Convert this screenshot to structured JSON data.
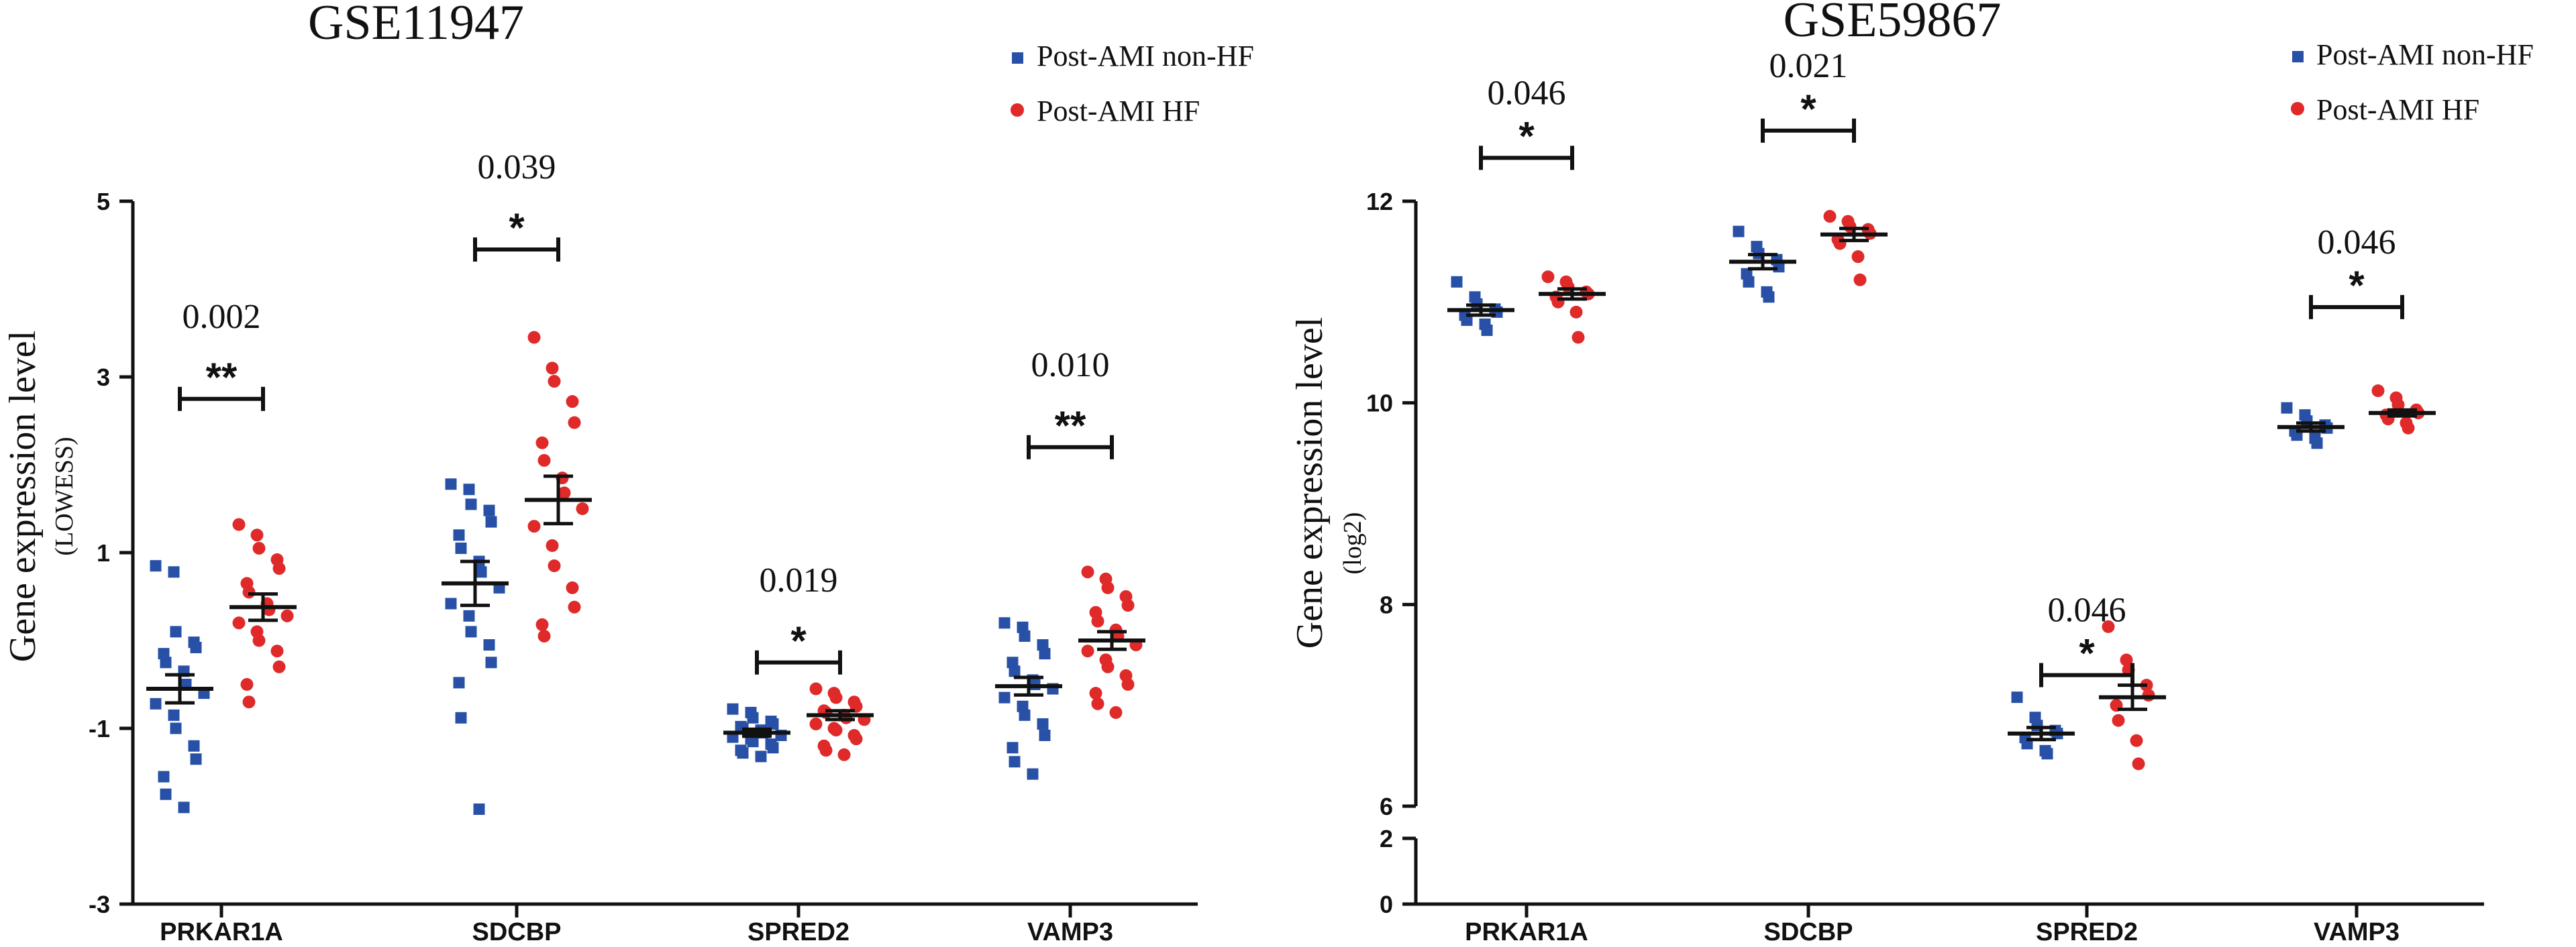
{
  "colors": {
    "non_hf": "#2750a6",
    "hf": "#e02a2a",
    "axis": "#111111"
  },
  "chart_data": [
    {
      "type": "scatter",
      "title": "GSE11947",
      "ylabel": "Gene expression level",
      "ylabel_sub": "(LOWESS)",
      "ylim": [
        -3,
        5
      ],
      "yticks": [
        -3,
        -1,
        1,
        3,
        5
      ],
      "ytick_labels": [
        "-3",
        "-1",
        "1",
        "3",
        "5"
      ],
      "categories": [
        "PRKAR1A",
        "SDCBP",
        "SPRED2",
        "VAMP3"
      ],
      "legend": [
        "Post-AMI non-HF",
        "Post-AMI HF"
      ],
      "series": [
        {
          "name": "Post-AMI non-HF",
          "marker": "square",
          "points": [
            [
              0.85,
              0.78,
              0.1,
              -0.02,
              -0.08,
              -0.15,
              -0.25,
              -0.35,
              -0.5,
              -0.6,
              -0.72,
              -0.85,
              -1.0,
              -1.2,
              -1.35,
              -1.55,
              -1.75,
              -1.9
            ],
            [
              1.78,
              1.72,
              1.55,
              1.48,
              1.35,
              1.2,
              1.05,
              0.9,
              0.78,
              0.6,
              0.42,
              0.28,
              0.1,
              -0.05,
              -0.25,
              -0.48,
              -0.88,
              -1.92
            ],
            [
              -0.78,
              -0.82,
              -0.88,
              -0.92,
              -0.95,
              -0.98,
              -1.0,
              -1.02,
              -1.05,
              -1.08,
              -1.1,
              -1.12,
              -1.15,
              -1.18,
              -1.22,
              -1.25,
              -1.28,
              -1.32
            ],
            [
              0.2,
              0.15,
              0.05,
              -0.05,
              -0.15,
              -0.25,
              -0.35,
              -0.45,
              -0.5,
              -0.55,
              -0.65,
              -0.75,
              -0.85,
              -0.95,
              -1.08,
              -1.22,
              -1.38,
              -1.52
            ]
          ],
          "mean": [
            -0.55,
            0.65,
            -1.05,
            -0.52
          ],
          "sem": [
            0.16,
            0.25,
            0.04,
            0.1
          ]
        },
        {
          "name": "Post-AMI HF",
          "marker": "circle",
          "points": [
            [
              1.32,
              1.2,
              1.05,
              0.92,
              0.82,
              0.65,
              0.55,
              0.42,
              0.35,
              0.28,
              0.2,
              0.1,
              0.0,
              -0.12,
              -0.3,
              -0.5,
              -0.7
            ],
            [
              3.45,
              3.1,
              2.95,
              2.72,
              2.48,
              2.25,
              2.05,
              1.85,
              1.68,
              1.5,
              1.3,
              1.08,
              0.85,
              0.6,
              0.38,
              0.18,
              0.05
            ],
            [
              -0.55,
              -0.6,
              -0.65,
              -0.7,
              -0.75,
              -0.8,
              -0.82,
              -0.85,
              -0.88,
              -0.9,
              -0.95,
              -1.0,
              -1.02,
              -1.08,
              -1.12,
              -1.2,
              -1.25,
              -1.3
            ],
            [
              0.78,
              0.7,
              0.6,
              0.5,
              0.4,
              0.32,
              0.22,
              0.12,
              0.05,
              -0.05,
              -0.12,
              -0.22,
              -0.3,
              -0.4,
              -0.5,
              -0.6,
              -0.72,
              -0.82
            ]
          ],
          "mean": [
            0.38,
            1.6,
            -0.85,
            0.0
          ],
          "sem": [
            0.15,
            0.27,
            0.05,
            0.1
          ]
        }
      ],
      "significance": [
        {
          "category": "PRKAR1A",
          "p": "0.002",
          "stars": "**",
          "bar_y": 2.75
        },
        {
          "category": "SDCBP",
          "p": "0.039",
          "stars": "*",
          "bar_y": 4.45
        },
        {
          "category": "SPRED2",
          "p": "0.019",
          "stars": "*",
          "bar_y": -0.25
        },
        {
          "category": "VAMP3",
          "p": "0.010",
          "stars": "**",
          "bar_y": 2.2
        }
      ]
    },
    {
      "type": "scatter",
      "title": "GSE59867",
      "ylabel": "Gene expression level",
      "ylabel_sub": "(log2)",
      "ylim": [
        0,
        12
      ],
      "axis_break": [
        2,
        6
      ],
      "yticks": [
        0,
        2,
        6,
        8,
        10,
        12
      ],
      "ytick_labels": [
        "0",
        "2",
        "6",
        "8",
        "10",
        "12"
      ],
      "categories": [
        "PRKAR1A",
        "SDCBP",
        "SPRED2",
        "VAMP3"
      ],
      "legend": [
        "Post-AMI non-HF",
        "Post-AMI HF"
      ],
      "series": [
        {
          "name": "Post-AMI non-HF",
          "marker": "square",
          "points": [
            [
              11.2,
              11.05,
              10.98,
              10.93,
              10.9,
              10.87,
              10.82,
              10.78,
              10.72
            ],
            [
              11.7,
              11.55,
              11.48,
              11.42,
              11.35,
              11.28,
              11.2,
              11.1,
              11.05
            ],
            [
              7.08,
              6.88,
              6.8,
              6.75,
              6.72,
              6.68,
              6.62,
              6.55,
              6.52
            ],
            [
              9.95,
              9.88,
              9.82,
              9.78,
              9.75,
              9.72,
              9.68,
              9.65,
              9.6
            ]
          ],
          "mean": [
            10.92,
            11.4,
            6.72,
            9.76
          ],
          "sem": [
            0.05,
            0.07,
            0.06,
            0.04
          ]
        },
        {
          "name": "Post-AMI HF",
          "marker": "circle",
          "points": [
            [
              11.25,
              11.2,
              11.15,
              11.1,
              11.08,
              11.05,
              11.0,
              10.9,
              10.65
            ],
            [
              11.85,
              11.8,
              11.75,
              11.72,
              11.68,
              11.62,
              11.58,
              11.45,
              11.22
            ],
            [
              7.78,
              7.45,
              7.35,
              7.2,
              7.1,
              7.0,
              6.85,
              6.65,
              6.42
            ],
            [
              10.12,
              10.05,
              9.98,
              9.93,
              9.9,
              9.88,
              9.84,
              9.8,
              9.75
            ]
          ],
          "mean": [
            11.08,
            11.67,
            7.08,
            9.9
          ],
          "sem": [
            0.05,
            0.06,
            0.12,
            0.03
          ]
        }
      ],
      "significance": [
        {
          "category": "PRKAR1A",
          "p": "0.046",
          "stars": "*",
          "bar_y": 12.43
        },
        {
          "category": "SDCBP",
          "p": "0.021",
          "stars": "*",
          "bar_y": 12.7
        },
        {
          "category": "SPRED2",
          "p": "0.046",
          "stars": "*",
          "bar_y": 7.3
        },
        {
          "category": "VAMP3",
          "p": "0.046",
          "stars": "*",
          "bar_y": 10.95
        }
      ]
    }
  ]
}
